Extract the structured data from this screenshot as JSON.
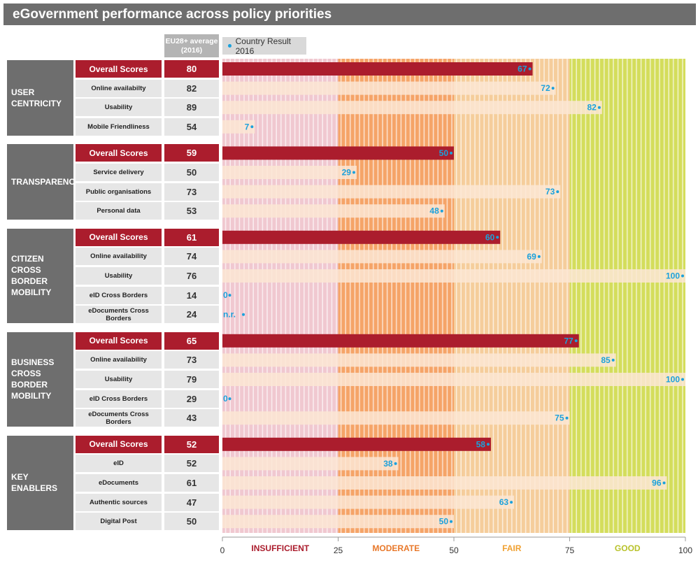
{
  "title": "eGovernment performance across policy priorities",
  "header": {
    "eu_average": "EU28+ average (2016)",
    "legend_label": "Country Result 2016"
  },
  "colors": {
    "insufficient": "#f0c8d0",
    "moderate": "#f5a468",
    "fair": "#f5cd9b",
    "good": "#d4dd5c",
    "overall_bar": "#ab1d2d",
    "sub_bar": "#fbe6d4",
    "dot": "#1ba1dc",
    "label_value": "#1ba1dc"
  },
  "chart_data": {
    "type": "bar",
    "orientation": "horizontal",
    "xlim": [
      0,
      100
    ],
    "x_ticks": [
      "0",
      "25",
      "50",
      "75",
      "100"
    ],
    "bands": [
      {
        "label": "INSUFFICIENT",
        "from": 0,
        "to": 25,
        "label_color": "#ab1d2d"
      },
      {
        "label": "MODERATE",
        "from": 25,
        "to": 50,
        "label_color": "#e8782a"
      },
      {
        "label": "FAIR",
        "from": 50,
        "to": 75,
        "label_color": "#f0a030"
      },
      {
        "label": "GOOD",
        "from": 75,
        "to": 100,
        "label_color": "#b8c22a"
      }
    ],
    "series": [
      {
        "name": "EU28+ average (2016)"
      },
      {
        "name": "Country Result 2016"
      }
    ],
    "groups": [
      {
        "name": "USER CENTRICITY",
        "rows": [
          {
            "label": "Overall Scores",
            "eu": "80",
            "value": 67,
            "value_label": "67",
            "overall": true
          },
          {
            "label": "Online availabilty",
            "eu": "82",
            "value": 72,
            "value_label": "72",
            "overall": false
          },
          {
            "label": "Usability",
            "eu": "89",
            "value": 82,
            "value_label": "82",
            "overall": false
          },
          {
            "label": "Mobile Friendliness",
            "eu": "54",
            "value": 7,
            "value_label": "7",
            "overall": false
          }
        ]
      },
      {
        "name": "TRANSPARENCY",
        "rows": [
          {
            "label": "Overall Scores",
            "eu": "59",
            "value": 50,
            "value_label": "50",
            "overall": true
          },
          {
            "label": "Service delivery",
            "eu": "50",
            "value": 29,
            "value_label": "29",
            "overall": false
          },
          {
            "label": "Public organisations",
            "eu": "73",
            "value": 73,
            "value_label": "73",
            "overall": false
          },
          {
            "label": "Personal data",
            "eu": "53",
            "value": 48,
            "value_label": "48",
            "overall": false
          }
        ]
      },
      {
        "name": "CITIZEN CROSS BORDER MOBILITY",
        "rows": [
          {
            "label": "Overall Scores",
            "eu": "61",
            "value": 60,
            "value_label": "60",
            "overall": true
          },
          {
            "label": "Online availability",
            "eu": "74",
            "value": 69,
            "value_label": "69",
            "overall": false
          },
          {
            "label": "Usability",
            "eu": "76",
            "value": 100,
            "value_label": "100",
            "overall": false
          },
          {
            "label": "eID Cross Borders",
            "eu": "14",
            "value": 0,
            "value_label": "0",
            "overall": false
          },
          {
            "label": "eDocuments Cross Borders",
            "eu": "24",
            "value": 0,
            "value_label": "n.r.",
            "overall": false
          }
        ]
      },
      {
        "name": "BUSINESS CROSS BORDER MOBILITY",
        "rows": [
          {
            "label": "Overall Scores",
            "eu": "65",
            "value": 77,
            "value_label": "77",
            "overall": true
          },
          {
            "label": "Online availability",
            "eu": "73",
            "value": 85,
            "value_label": "85",
            "overall": false
          },
          {
            "label": "Usability",
            "eu": "79",
            "value": 100,
            "value_label": "100",
            "overall": false
          },
          {
            "label": "eID Cross Borders",
            "eu": "29",
            "value": 0,
            "value_label": "0",
            "overall": false
          },
          {
            "label": "eDocuments Cross Borders",
            "eu": "43",
            "value": 75,
            "value_label": "75",
            "overall": false
          }
        ]
      },
      {
        "name": "KEY ENABLERS",
        "rows": [
          {
            "label": "Overall Scores",
            "eu": "52",
            "value": 58,
            "value_label": "58",
            "overall": true
          },
          {
            "label": "eID",
            "eu": "52",
            "value": 38,
            "value_label": "38",
            "overall": false
          },
          {
            "label": "eDocuments",
            "eu": "61",
            "value": 96,
            "value_label": "96",
            "overall": false
          },
          {
            "label": "Authentic sources",
            "eu": "47",
            "value": 63,
            "value_label": "63",
            "overall": false
          },
          {
            "label": "Digital Post",
            "eu": "50",
            "value": 50,
            "value_label": "50",
            "overall": false
          }
        ]
      }
    ]
  }
}
